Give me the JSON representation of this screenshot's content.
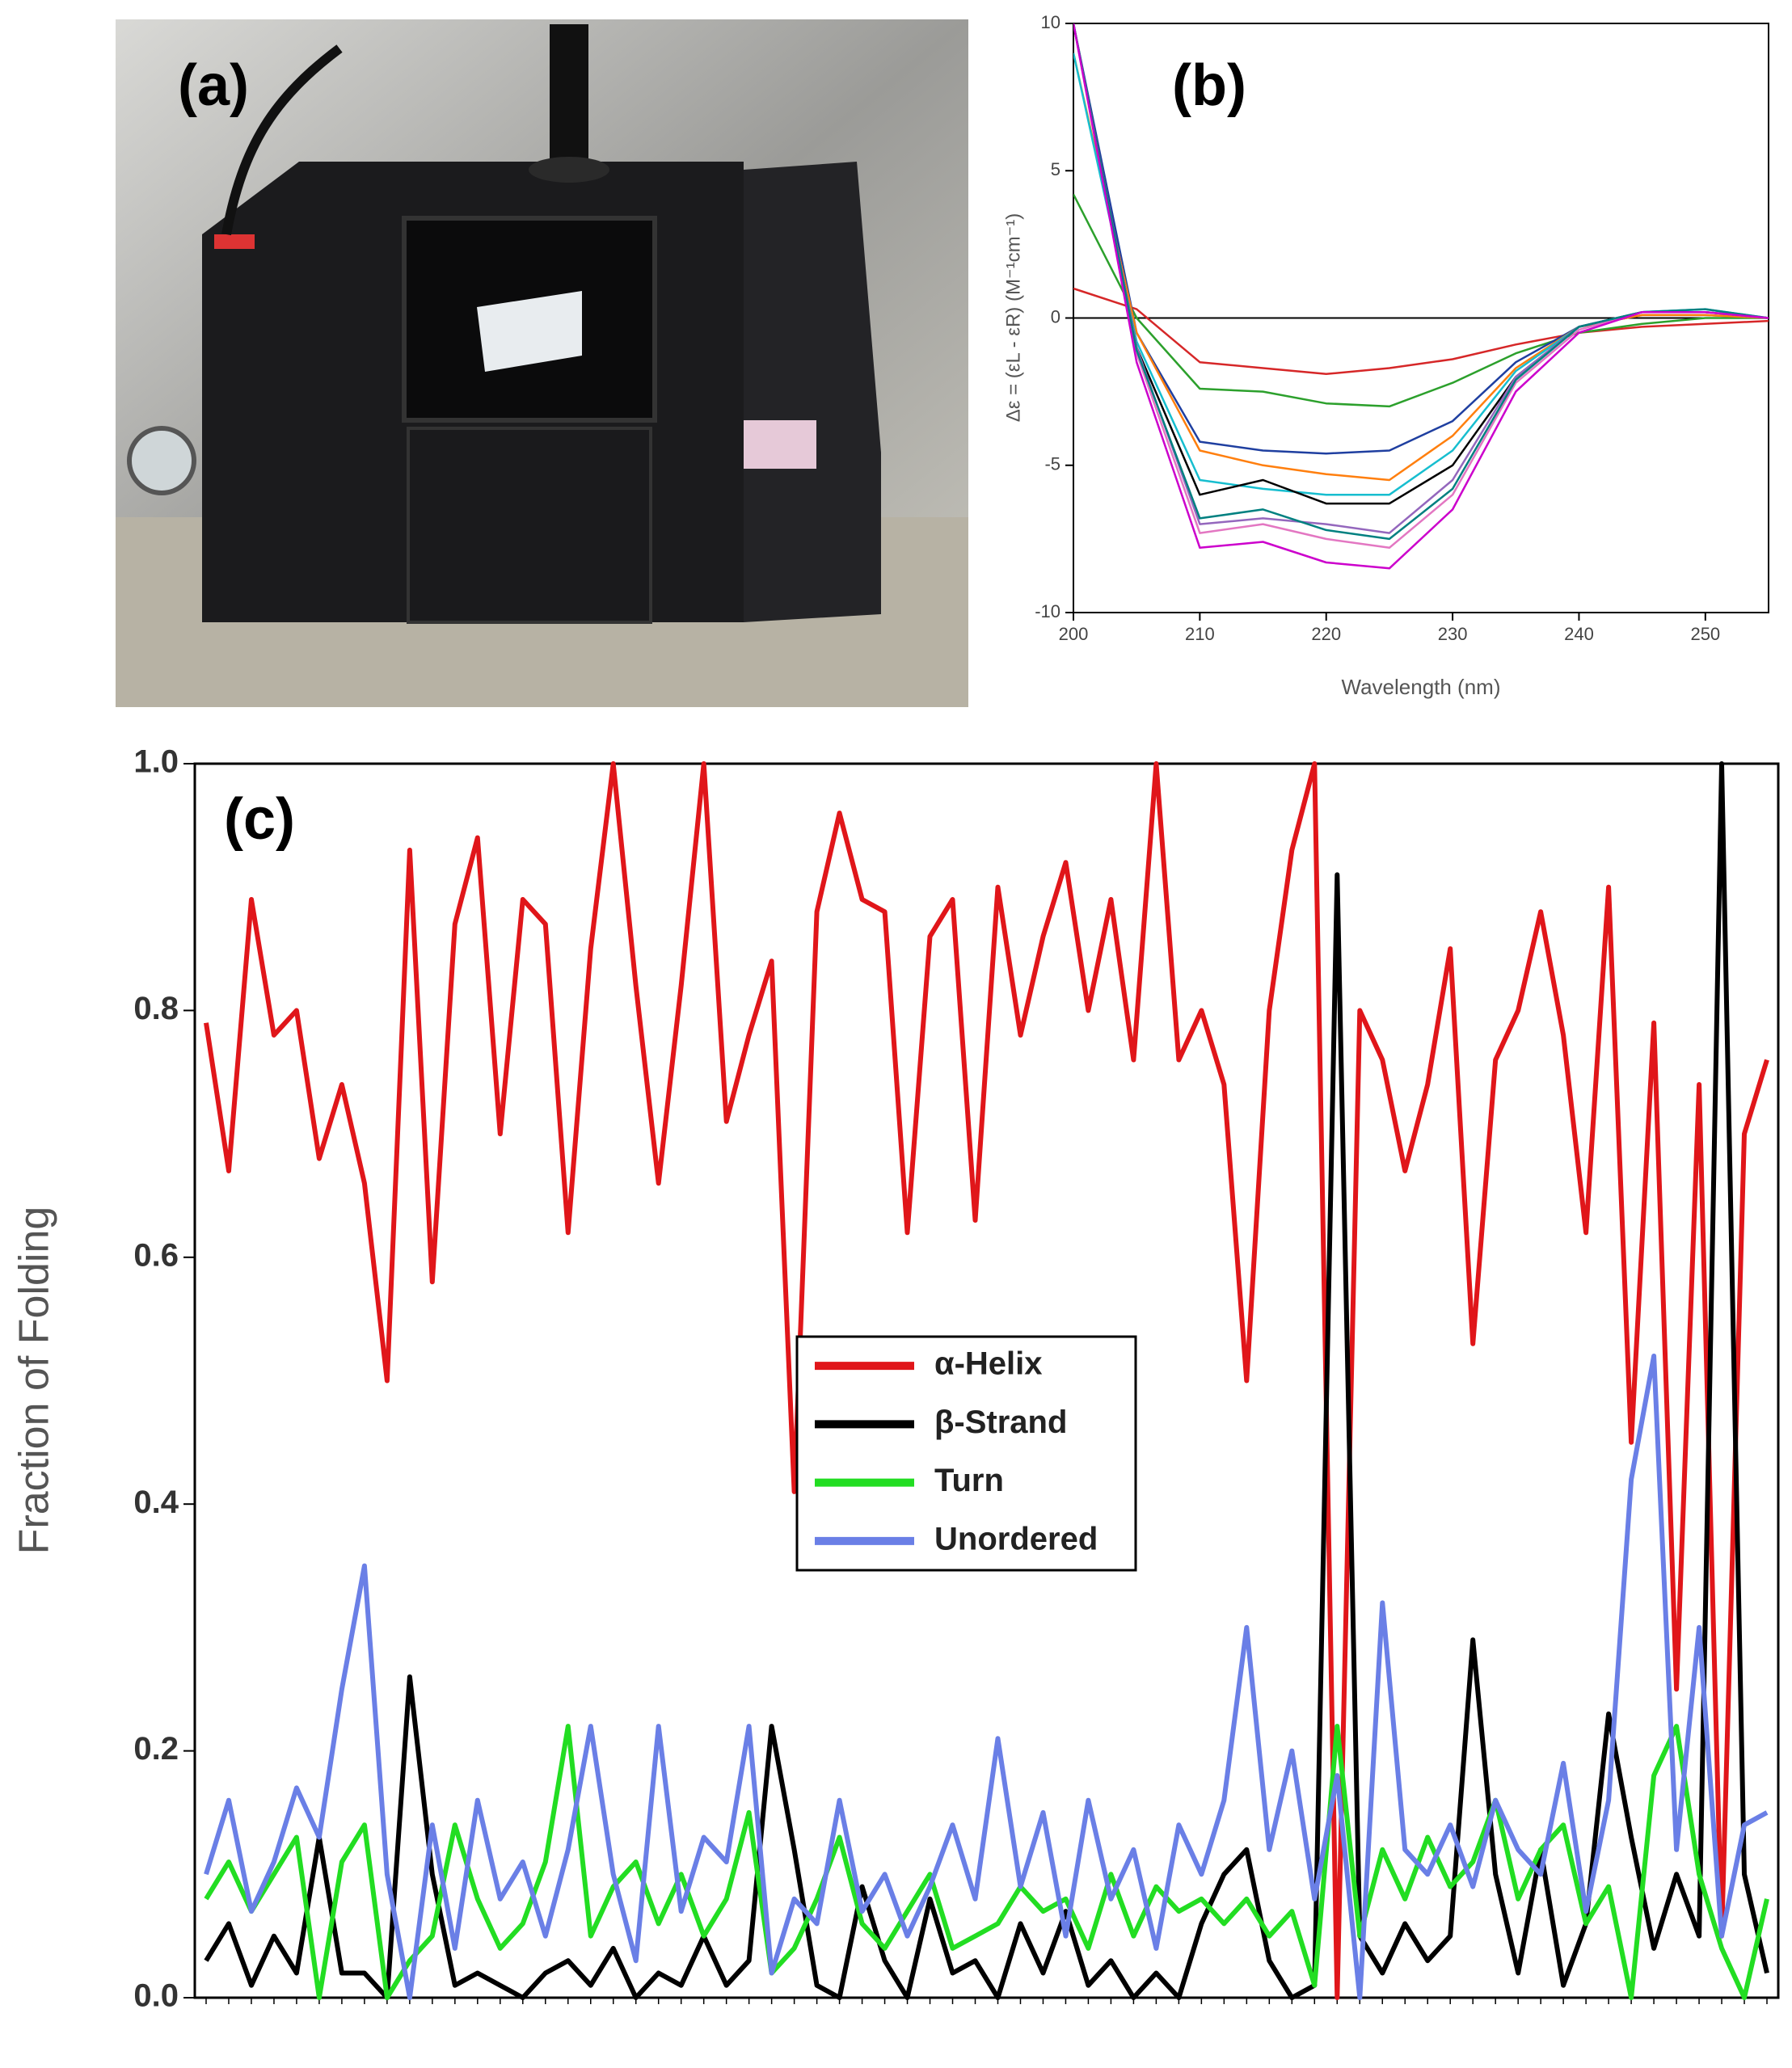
{
  "photo": {
    "label": "(a)"
  },
  "chart_data": [
    {
      "type": "line",
      "panel_label": "(b)",
      "x_label": "Wavelength (nm)",
      "y_label": "Δε = (εL - εR) (M⁻¹cm⁻¹)",
      "x": [
        200,
        205,
        210,
        215,
        220,
        225,
        230,
        235,
        240,
        245,
        250,
        255
      ],
      "xlim": [
        200,
        255
      ],
      "xticks": [
        200,
        210,
        220,
        230,
        240,
        250
      ],
      "ylim": [
        -10,
        10
      ],
      "yticks": [
        -10,
        -5,
        0,
        5,
        10
      ],
      "series": [
        {
          "color": "#d62728",
          "values": [
            1,
            0.3,
            -1.5,
            -1.7,
            -1.9,
            -1.7,
            -1.4,
            -0.9,
            -0.5,
            -0.3,
            -0.2,
            -0.1
          ]
        },
        {
          "color": "#2ca02c",
          "values": [
            4.2,
            0,
            -2.4,
            -2.5,
            -2.9,
            -3.0,
            -2.2,
            -1.2,
            -0.5,
            -0.2,
            0,
            0
          ]
        },
        {
          "color": "#1f3fa0",
          "values": [
            10,
            -0.5,
            -4.2,
            -4.5,
            -4.6,
            -4.5,
            -3.5,
            -1.5,
            -0.3,
            0.1,
            0.1,
            0
          ]
        },
        {
          "color": "#ff7f0e",
          "values": [
            9,
            -0.5,
            -4.5,
            -5,
            -5.3,
            -5.5,
            -4,
            -1.7,
            -0.3,
            0.1,
            0.1,
            0
          ]
        },
        {
          "color": "#17becf",
          "values": [
            9,
            -0.8,
            -5.5,
            -5.8,
            -6,
            -6,
            -4.5,
            -1.8,
            -0.3,
            0.2,
            0.3,
            0
          ]
        },
        {
          "color": "#000000",
          "values": [
            10,
            -1,
            -6,
            -5.5,
            -6.3,
            -6.3,
            -5,
            -2,
            -0.3,
            0.2,
            0.2,
            0
          ]
        },
        {
          "color": "#9467bd",
          "values": [
            10,
            -1,
            -7,
            -6.8,
            -7,
            -7.3,
            -5.5,
            -2,
            -0.3,
            0.2,
            0.2,
            0
          ]
        },
        {
          "color": "#e377c2",
          "values": [
            10,
            -1.2,
            -7.3,
            -7,
            -7.5,
            -7.8,
            -6,
            -2.2,
            -0.4,
            0.2,
            0.2,
            0
          ]
        },
        {
          "color": "#008080",
          "values": [
            10,
            -1.1,
            -6.8,
            -6.5,
            -7.2,
            -7.5,
            -5.8,
            -2.1,
            -0.3,
            0.2,
            0.3,
            0
          ]
        },
        {
          "color": "#cc00cc",
          "values": [
            10,
            -1.5,
            -7.8,
            -7.6,
            -8.3,
            -8.5,
            -6.5,
            -2.5,
            -0.5,
            0.2,
            0.2,
            0
          ]
        }
      ]
    },
    {
      "type": "line",
      "panel_label": "(c)",
      "y_label": "Fraction of Folding",
      "legend": "center",
      "categories": [
        null,
        null,
        null,
        null,
        null,
        null,
        null,
        null,
        null,
        null,
        null,
        null,
        null,
        null,
        null,
        null,
        null,
        null,
        null,
        null,
        null,
        null,
        null,
        null,
        null,
        null,
        null,
        null,
        null,
        null,
        null,
        null,
        null,
        null,
        null,
        null,
        null,
        null,
        null,
        null,
        null,
        null,
        null,
        null,
        null,
        null,
        null,
        null,
        null,
        null,
        null,
        null,
        null,
        null,
        null,
        null,
        null,
        null,
        null,
        null,
        null,
        null,
        null,
        null,
        null,
        null,
        null,
        null,
        null,
        null
      ],
      "ylim": [
        0,
        1
      ],
      "yticks": [
        {
          "value": 0,
          "label": "0.0"
        },
        0.2,
        0.4,
        0.6,
        0.8,
        {
          "value": 1,
          "label": "1.0"
        }
      ],
      "series": [
        {
          "name": "α-Helix",
          "color": "#e0161a",
          "values": [
            0.79,
            0.67,
            0.89,
            0.78,
            0.8,
            0.68,
            0.74,
            0.66,
            0.5,
            0.93,
            0.58,
            0.87,
            0.94,
            0.7,
            0.89,
            0.87,
            0.62,
            0.85,
            1.0,
            0.82,
            0.66,
            0.82,
            1.0,
            0.71,
            0.78,
            0.84,
            0.41,
            0.88,
            0.96,
            0.89,
            0.88,
            0.62,
            0.86,
            0.89,
            0.63,
            0.9,
            0.78,
            0.86,
            0.92,
            0.8,
            0.89,
            0.76,
            1.0,
            0.76,
            0.8,
            0.74,
            0.5,
            0.8,
            0.93,
            1.0,
            0.0,
            0.8,
            0.76,
            0.67,
            0.74,
            0.85,
            0.53,
            0.76,
            0.8,
            0.88,
            0.78,
            0.62,
            0.9,
            0.45,
            0.79,
            0.25,
            0.74,
            0.05,
            0.7,
            0.76
          ]
        },
        {
          "name": "β-Strand",
          "color": "#000000",
          "values": [
            0.03,
            0.06,
            0.01,
            0.05,
            0.02,
            0.13,
            0.02,
            0.02,
            0.0,
            0.26,
            0.1,
            0.01,
            0.02,
            0.01,
            0.0,
            0.02,
            0.03,
            0.01,
            0.04,
            0.0,
            0.02,
            0.01,
            0.05,
            0.01,
            0.03,
            0.22,
            0.12,
            0.01,
            0.0,
            0.09,
            0.03,
            0.0,
            0.08,
            0.02,
            0.03,
            0.0,
            0.06,
            0.02,
            0.07,
            0.01,
            0.03,
            0.0,
            0.02,
            0.0,
            0.06,
            0.1,
            0.12,
            0.03,
            0.0,
            0.01,
            0.91,
            0.05,
            0.02,
            0.06,
            0.03,
            0.05,
            0.29,
            0.1,
            0.02,
            0.12,
            0.01,
            0.06,
            0.23,
            0.13,
            0.04,
            0.1,
            0.05,
            1.0,
            0.1,
            0.02
          ]
        },
        {
          "name": "Turn",
          "color": "#22dd22",
          "values": [
            0.08,
            0.11,
            0.07,
            0.1,
            0.13,
            0.0,
            0.11,
            0.14,
            0.0,
            0.03,
            0.05,
            0.14,
            0.08,
            0.04,
            0.06,
            0.11,
            0.22,
            0.05,
            0.09,
            0.11,
            0.06,
            0.1,
            0.05,
            0.08,
            0.15,
            0.02,
            0.04,
            0.08,
            0.13,
            0.06,
            0.04,
            0.07,
            0.1,
            0.04,
            0.05,
            0.06,
            0.09,
            0.07,
            0.08,
            0.04,
            0.1,
            0.05,
            0.09,
            0.07,
            0.08,
            0.06,
            0.08,
            0.05,
            0.07,
            0.01,
            0.22,
            0.05,
            0.12,
            0.08,
            0.13,
            0.09,
            0.11,
            0.16,
            0.08,
            0.12,
            0.14,
            0.06,
            0.09,
            0.0,
            0.18,
            0.22,
            0.1,
            0.04,
            0.0,
            0.08
          ]
        },
        {
          "name": "Unordered",
          "color": "#6a7fe6",
          "values": [
            0.1,
            0.16,
            0.07,
            0.11,
            0.17,
            0.13,
            0.25,
            0.35,
            0.1,
            0.0,
            0.14,
            0.04,
            0.16,
            0.08,
            0.11,
            0.05,
            0.12,
            0.22,
            0.1,
            0.03,
            0.22,
            0.07,
            0.13,
            0.11,
            0.22,
            0.02,
            0.08,
            0.06,
            0.16,
            0.07,
            0.1,
            0.05,
            0.09,
            0.14,
            0.08,
            0.21,
            0.09,
            0.15,
            0.05,
            0.16,
            0.08,
            0.12,
            0.04,
            0.14,
            0.1,
            0.16,
            0.3,
            0.12,
            0.2,
            0.08,
            0.18,
            0.0,
            0.32,
            0.12,
            0.1,
            0.14,
            0.09,
            0.16,
            0.12,
            0.1,
            0.19,
            0.07,
            0.16,
            0.42,
            0.52,
            0.12,
            0.3,
            0.05,
            0.14,
            0.15
          ]
        }
      ]
    }
  ]
}
